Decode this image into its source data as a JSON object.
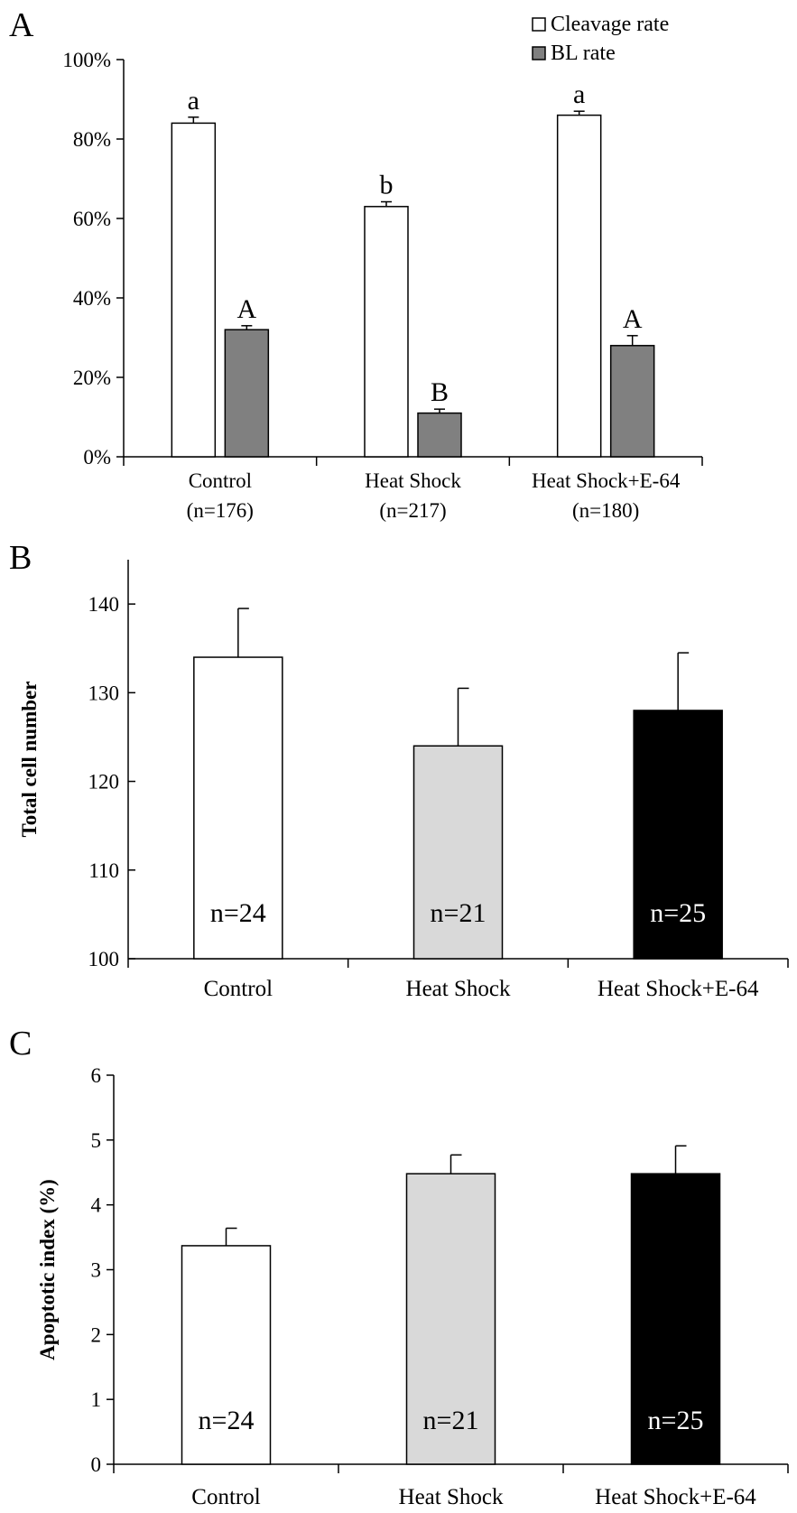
{
  "chart_data": [
    {
      "panel": "A",
      "type": "bar",
      "categories": [
        "Control",
        "Heat Shock",
        "Heat Shock+E-64"
      ],
      "category_sublabels": [
        "(n=176)",
        "(n=217)",
        "(n=180)"
      ],
      "series": [
        {
          "name": "Cleavage rate",
          "values": [
            84,
            63,
            86
          ],
          "errors": [
            1.5,
            1.2,
            1.0
          ],
          "sig_letters": [
            "a",
            "b",
            "a"
          ],
          "color": "#ffffff"
        },
        {
          "name": "BL rate",
          "values": [
            32,
            11,
            28
          ],
          "errors": [
            1.0,
            1.0,
            2.5
          ],
          "sig_letters": [
            "A",
            "B",
            "A"
          ],
          "color": "#808080"
        }
      ],
      "ylim": [
        0,
        100
      ],
      "yticks": [
        0,
        20,
        40,
        60,
        80,
        100
      ],
      "ytick_labels": [
        "0%",
        "20%",
        "40%",
        "60%",
        "80%",
        "100%"
      ],
      "ylabel": "",
      "legend": "top-right",
      "grid": false
    },
    {
      "panel": "B",
      "type": "bar",
      "categories": [
        "Control",
        "Heat Shock",
        "Heat Shock+E-64"
      ],
      "values": [
        134,
        124,
        128
      ],
      "errors": [
        5.5,
        6.5,
        6.5
      ],
      "bar_labels": [
        "n=24",
        "n=21",
        "n=25"
      ],
      "colors": [
        "#ffffff",
        "#d9d9d9",
        "#000000"
      ],
      "ylim": [
        100,
        145
      ],
      "yticks": [
        100,
        110,
        120,
        130,
        140
      ],
      "ylabel": "Total cell number",
      "grid": false
    },
    {
      "panel": "C",
      "type": "bar",
      "categories": [
        "Control",
        "Heat Shock",
        "Heat Shock+E-64"
      ],
      "values": [
        3.37,
        4.48,
        4.48
      ],
      "errors": [
        0.27,
        0.29,
        0.43
      ],
      "bar_labels": [
        "n=24",
        "n=21",
        "n=25"
      ],
      "colors": [
        "#ffffff",
        "#d9d9d9",
        "#000000"
      ],
      "ylim": [
        0,
        6
      ],
      "yticks": [
        0,
        1,
        2,
        3,
        4,
        5,
        6
      ],
      "ylabel": "Apoptotic index (%)",
      "grid": false
    }
  ]
}
